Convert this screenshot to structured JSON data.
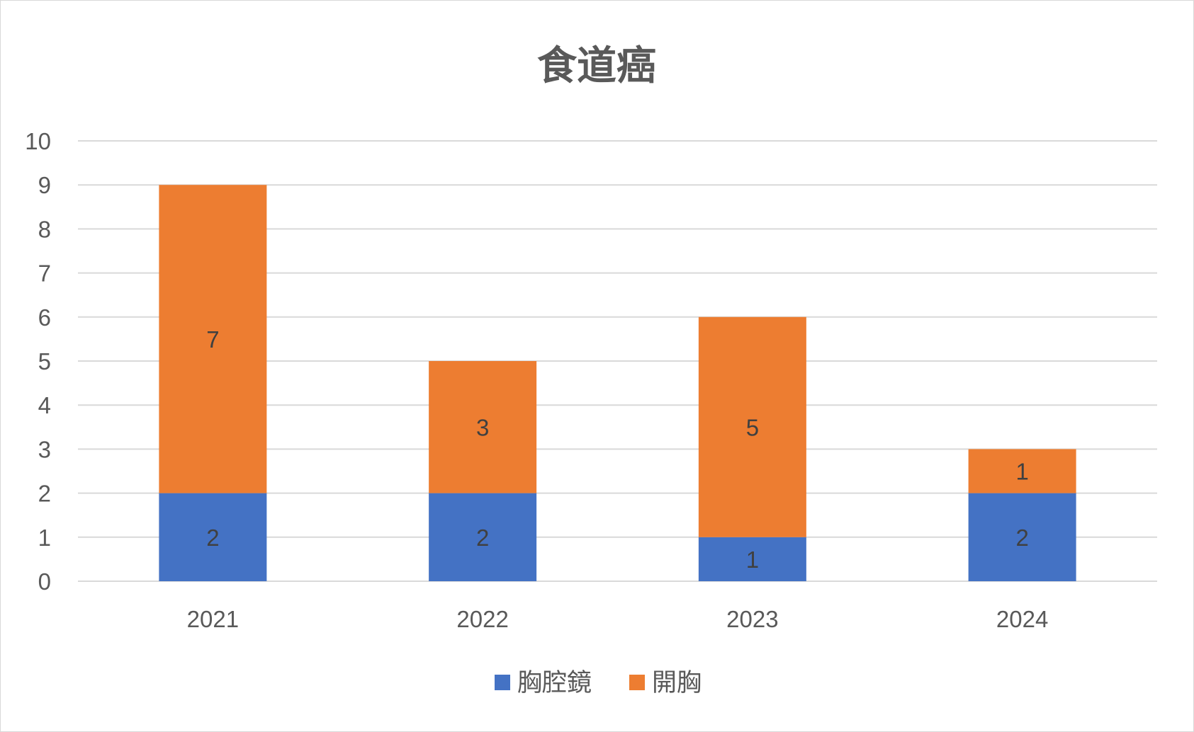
{
  "chart_data": {
    "type": "bar",
    "stacked": true,
    "title": "食道癌",
    "categories": [
      "2021",
      "2022",
      "2023",
      "2024"
    ],
    "series": [
      {
        "name": "胸腔鏡",
        "color": "#4472C4",
        "values": [
          2,
          2,
          1,
          2
        ]
      },
      {
        "name": "開胸",
        "color": "#ED7D31",
        "values": [
          7,
          3,
          5,
          1
        ]
      }
    ],
    "ylim": [
      0,
      10
    ],
    "yticks": [
      0,
      1,
      2,
      3,
      4,
      5,
      6,
      7,
      8,
      9,
      10
    ],
    "grid": true,
    "legend_position": "bottom",
    "data_labels": true
  }
}
